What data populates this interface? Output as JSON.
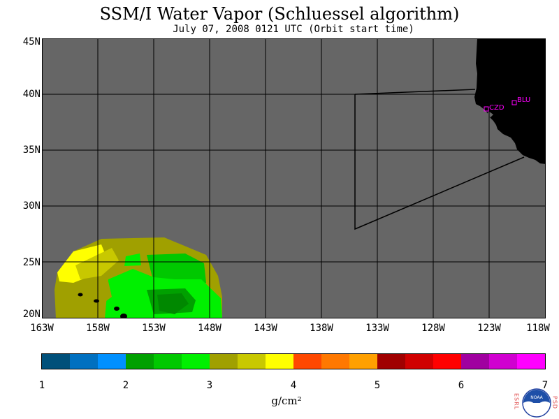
{
  "header": {
    "title": "SSM/I Water Vapor (Schluessel algorithm)",
    "subtitle": "July 07, 2008  0121 UTC  (Orbit start time)"
  },
  "map": {
    "background_color": "#666666",
    "land_color": "#000000",
    "lat_range": [
      19.75,
      45
    ],
    "lon_range": [
      -163,
      -118
    ],
    "lat_labels": [
      "45N",
      "40N",
      "35N",
      "30N",
      "25N",
      "20N"
    ],
    "lon_labels": [
      "163W",
      "158W",
      "153W",
      "148W",
      "143W",
      "138W",
      "133W",
      "128W",
      "123W",
      "118W"
    ],
    "stations": [
      {
        "name": "CZD",
        "color": "#ff00ff"
      },
      {
        "name": "BLU",
        "color": "#ff00ff"
      }
    ],
    "domain_outline": "black polyline"
  },
  "colorbar": {
    "units": "g/cm²",
    "labels": [
      "1",
      "2",
      "3",
      "4",
      "5",
      "6",
      "7"
    ],
    "colors": [
      "#00507a",
      "#0070c0",
      "#0090ff",
      "#00a000",
      "#00c800",
      "#00f000",
      "#a0a000",
      "#c8c800",
      "#ffff00",
      "#ff4800",
      "#ff7800",
      "#ffa000",
      "#a00000",
      "#d00000",
      "#ff0000",
      "#a000a0",
      "#d000d0",
      "#ff00ff"
    ]
  },
  "logo": {
    "left_text": "ESRL",
    "right_text": "PSD",
    "center_text": "NOAA"
  }
}
